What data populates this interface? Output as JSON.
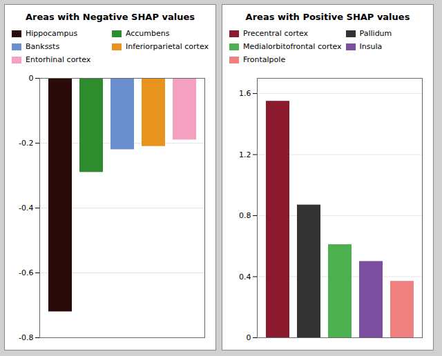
{
  "chart_data": [
    {
      "type": "bar",
      "title": "Areas with Negative SHAP values",
      "categories": [
        "Hippocampus",
        "Accumbens",
        "Bankssts",
        "Inferiorparietal cortex",
        "Entorhinal cortex"
      ],
      "values": [
        -0.72,
        -0.29,
        -0.22,
        -0.21,
        -0.19
      ],
      "colors": [
        "#2B0A0A",
        "#2E8B2E",
        "#6B8FCE",
        "#E8931E",
        "#F4A0C0"
      ],
      "ylim": [
        -0.8,
        0.0
      ],
      "yticks": [
        0,
        -0.2,
        -0.4,
        -0.6,
        -0.8
      ],
      "grid": true,
      "tick_labels": "y",
      "legend": "top"
    },
    {
      "type": "bar",
      "title": "Areas with Positive SHAP values",
      "categories": [
        "Precentral cortex",
        "Pallidum",
        "Medialorbitofrontal cortex",
        "Insula",
        "Frontalpole"
      ],
      "values": [
        1.55,
        0.87,
        0.61,
        0.5,
        0.37
      ],
      "colors": [
        "#8B1A2E",
        "#333333",
        "#4CAF50",
        "#7B4EA0",
        "#F08080"
      ],
      "ylim": [
        0,
        1.7
      ],
      "yticks": [
        0,
        0.4,
        0.8,
        1.2,
        1.6
      ],
      "grid": true,
      "tick_labels": "y",
      "legend": "top"
    }
  ]
}
